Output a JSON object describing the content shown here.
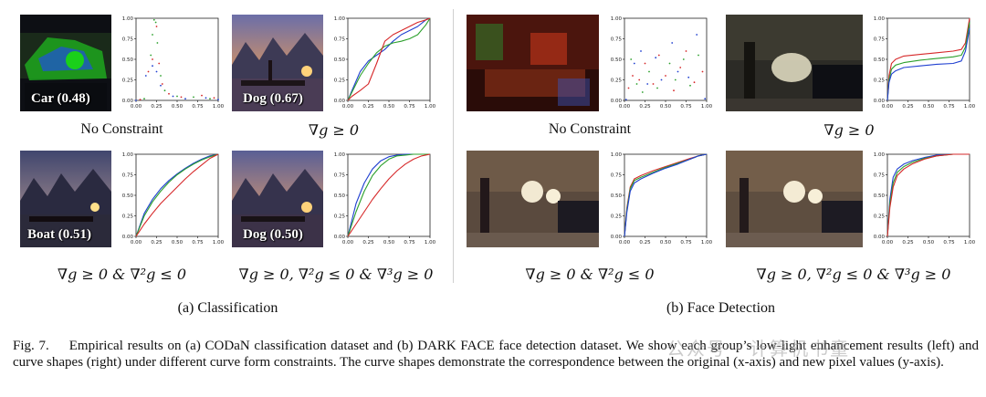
{
  "panels": {
    "classification": {
      "title": "(a) Classification",
      "groups": [
        {
          "badge": "Car (0.48)",
          "constraint": "No Constraint"
        },
        {
          "badge": "Dog (0.67)",
          "constraint": "∇g ≥ 0"
        },
        {
          "badge": "Boat (0.51)",
          "constraint": "∇g ≥ 0  & ∇²g ≤ 0"
        },
        {
          "badge": "Dog (0.50)",
          "constraint": "∇g ≥ 0, ∇²g ≤ 0 & ∇³g ≥ 0"
        }
      ]
    },
    "face_detection": {
      "title": "(b) Face Detection",
      "groups": [
        {
          "constraint": "No Constraint"
        },
        {
          "constraint": "∇g ≥ 0"
        },
        {
          "constraint": "∇g ≥ 0  & ∇²g ≤ 0"
        },
        {
          "constraint": "∇g ≥ 0, ∇²g ≤ 0 & ∇³g ≥ 0"
        }
      ]
    }
  },
  "caption": {
    "label": "Fig. 7.",
    "text": "Empirical results on (a) CODaN classification dataset and (b) DARK FACE face detection dataset. We show each group’s low-light enhancement results (left) and curve shapes (right) under different curve form constraints. The curve shapes demonstrate the correspondence between the original (x-axis) and new pixel values (y-axis)."
  },
  "watermark": "公众号 · 计算机书童",
  "chart_data": [
    {
      "type": "scatter",
      "panel": "classification",
      "constraint": "No Constraint",
      "xlim": [
        0,
        1
      ],
      "ylim": [
        0,
        1
      ],
      "xticks": [
        "0.00",
        "0.25",
        "0.50",
        "0.75",
        "1.00"
      ],
      "yticks": [
        "0.00",
        "0.25",
        "0.50",
        "0.75",
        "1.00"
      ],
      "series": [
        {
          "color": "#2ca02c",
          "points": [
            [
              0.1,
              0.02
            ],
            [
              0.18,
              0.55
            ],
            [
              0.2,
              0.8
            ],
            [
              0.22,
              0.98
            ],
            [
              0.24,
              0.95
            ],
            [
              0.26,
              0.7
            ],
            [
              0.3,
              0.3
            ],
            [
              0.35,
              0.12
            ],
            [
              0.5,
              0.05
            ],
            [
              0.7,
              0.04
            ],
            [
              0.9,
              0.02
            ]
          ]
        },
        {
          "color": "#d62728",
          "points": [
            [
              0.05,
              0.01
            ],
            [
              0.15,
              0.35
            ],
            [
              0.2,
              0.5
            ],
            [
              0.25,
              0.9
            ],
            [
              0.28,
              0.45
            ],
            [
              0.32,
              0.2
            ],
            [
              0.4,
              0.08
            ],
            [
              0.55,
              0.04
            ],
            [
              0.8,
              0.06
            ],
            [
              0.95,
              0.03
            ]
          ]
        },
        {
          "color": "#1f3fd0",
          "points": [
            [
              0.0,
              0.0
            ],
            [
              0.12,
              0.3
            ],
            [
              0.2,
              0.42
            ],
            [
              0.25,
              0.35
            ],
            [
              0.3,
              0.18
            ],
            [
              0.45,
              0.05
            ],
            [
              0.6,
              0.02
            ],
            [
              0.85,
              0.03
            ],
            [
              1.0,
              0.01
            ]
          ]
        }
      ]
    },
    {
      "type": "line",
      "panel": "classification",
      "constraint": "∇g ≥ 0",
      "xlim": [
        0,
        1
      ],
      "ylim": [
        0,
        1
      ],
      "xticks": [
        "0.00",
        "0.25",
        "0.50",
        "0.75",
        "1.00"
      ],
      "yticks": [
        "0.00",
        "0.25",
        "0.50",
        "0.75",
        "1.00"
      ],
      "series": [
        {
          "color": "#1f3fd0",
          "x": [
            0,
            0.05,
            0.15,
            0.25,
            0.35,
            0.45,
            0.55,
            0.65,
            0.75,
            0.85,
            0.95,
            1.0
          ],
          "y": [
            0,
            0.12,
            0.35,
            0.48,
            0.55,
            0.62,
            0.72,
            0.8,
            0.85,
            0.9,
            0.98,
            1.0
          ]
        },
        {
          "color": "#2ca02c",
          "x": [
            0,
            0.05,
            0.15,
            0.25,
            0.35,
            0.45,
            0.55,
            0.65,
            0.75,
            0.85,
            0.95,
            1.0
          ],
          "y": [
            0,
            0.1,
            0.3,
            0.45,
            0.58,
            0.66,
            0.7,
            0.72,
            0.75,
            0.8,
            0.92,
            1.0
          ]
        },
        {
          "color": "#d62728",
          "x": [
            0,
            0.05,
            0.15,
            0.25,
            0.35,
            0.45,
            0.55,
            0.65,
            0.75,
            0.85,
            0.95,
            1.0
          ],
          "y": [
            0,
            0.05,
            0.12,
            0.2,
            0.45,
            0.72,
            0.8,
            0.85,
            0.9,
            0.95,
            0.98,
            1.0
          ]
        }
      ]
    },
    {
      "type": "line",
      "panel": "classification",
      "constraint": "∇g ≥ 0  & ∇²g ≤ 0",
      "xlim": [
        0,
        1
      ],
      "ylim": [
        0,
        1
      ],
      "xticks": [
        "0.00",
        "0.25",
        "0.50",
        "0.75",
        "1.00"
      ],
      "yticks": [
        "0.00",
        "0.25",
        "0.50",
        "0.75",
        "1.00"
      ],
      "series": [
        {
          "color": "#1f3fd0",
          "x": [
            0,
            0.1,
            0.2,
            0.3,
            0.4,
            0.5,
            0.6,
            0.7,
            0.8,
            0.9,
            1.0
          ],
          "y": [
            0,
            0.28,
            0.45,
            0.58,
            0.68,
            0.76,
            0.83,
            0.89,
            0.94,
            0.98,
            1.0
          ]
        },
        {
          "color": "#2ca02c",
          "x": [
            0,
            0.1,
            0.2,
            0.3,
            0.4,
            0.5,
            0.6,
            0.7,
            0.8,
            0.9,
            1.0
          ],
          "y": [
            0,
            0.25,
            0.42,
            0.55,
            0.66,
            0.75,
            0.82,
            0.88,
            0.93,
            0.97,
            1.0
          ]
        },
        {
          "color": "#d62728",
          "x": [
            0,
            0.1,
            0.2,
            0.3,
            0.4,
            0.5,
            0.6,
            0.7,
            0.8,
            0.9,
            1.0
          ],
          "y": [
            0,
            0.15,
            0.28,
            0.4,
            0.5,
            0.6,
            0.7,
            0.79,
            0.87,
            0.95,
            1.0
          ]
        }
      ]
    },
    {
      "type": "line",
      "panel": "classification",
      "constraint": "∇g ≥ 0, ∇²g ≤ 0 & ∇³g ≥ 0",
      "xlim": [
        0,
        1
      ],
      "ylim": [
        0,
        1
      ],
      "xticks": [
        "0.00",
        "0.25",
        "0.50",
        "0.75",
        "1.00"
      ],
      "yticks": [
        "0.00",
        "0.25",
        "0.50",
        "0.75",
        "1.00"
      ],
      "series": [
        {
          "color": "#1f3fd0",
          "x": [
            0,
            0.1,
            0.2,
            0.3,
            0.4,
            0.5,
            0.6,
            0.7,
            0.8,
            0.9,
            1.0
          ],
          "y": [
            0,
            0.4,
            0.65,
            0.82,
            0.92,
            0.97,
            0.99,
            1.0,
            1.0,
            1.0,
            1.0
          ]
        },
        {
          "color": "#2ca02c",
          "x": [
            0,
            0.1,
            0.2,
            0.3,
            0.4,
            0.5,
            0.6,
            0.7,
            0.8,
            0.9,
            1.0
          ],
          "y": [
            0,
            0.3,
            0.55,
            0.74,
            0.86,
            0.94,
            0.98,
            0.99,
            1.0,
            1.0,
            1.0
          ]
        },
        {
          "color": "#d62728",
          "x": [
            0,
            0.1,
            0.2,
            0.3,
            0.4,
            0.5,
            0.6,
            0.7,
            0.8,
            0.9,
            1.0
          ],
          "y": [
            0,
            0.15,
            0.3,
            0.45,
            0.58,
            0.7,
            0.8,
            0.88,
            0.94,
            0.98,
            1.0
          ]
        }
      ]
    },
    {
      "type": "scatter",
      "panel": "face_detection",
      "constraint": "No Constraint",
      "xlim": [
        0,
        1
      ],
      "ylim": [
        0,
        1
      ],
      "xticks": [
        "0.00",
        "0.25",
        "0.50",
        "0.75",
        "1.00"
      ],
      "yticks": [
        "0.00",
        "0.25",
        "0.50",
        "0.75",
        "1.00"
      ],
      "series": [
        {
          "color": "#d62728",
          "points": [
            [
              0.05,
              0.15
            ],
            [
              0.1,
              0.3
            ],
            [
              0.18,
              0.25
            ],
            [
              0.25,
              0.45
            ],
            [
              0.35,
              0.2
            ],
            [
              0.42,
              0.55
            ],
            [
              0.5,
              0.3
            ],
            [
              0.6,
              0.12
            ],
            [
              0.68,
              0.4
            ],
            [
              0.75,
              0.6
            ],
            [
              0.85,
              0.22
            ],
            [
              0.95,
              0.35
            ]
          ]
        },
        {
          "color": "#2ca02c",
          "points": [
            [
              0.08,
              0.5
            ],
            [
              0.15,
              0.2
            ],
            [
              0.22,
              0.1
            ],
            [
              0.3,
              0.35
            ],
            [
              0.4,
              0.15
            ],
            [
              0.55,
              0.45
            ],
            [
              0.62,
              0.25
            ],
            [
              0.72,
              0.5
            ],
            [
              0.8,
              0.18
            ],
            [
              0.9,
              0.55
            ]
          ]
        },
        {
          "color": "#1f3fd0",
          "points": [
            [
              0.02,
              0.01
            ],
            [
              0.12,
              0.45
            ],
            [
              0.2,
              0.6
            ],
            [
              0.28,
              0.2
            ],
            [
              0.38,
              0.52
            ],
            [
              0.45,
              0.25
            ],
            [
              0.58,
              0.7
            ],
            [
              0.65,
              0.35
            ],
            [
              0.78,
              0.28
            ],
            [
              0.88,
              0.8
            ],
            [
              0.98,
              0.02
            ]
          ]
        }
      ]
    },
    {
      "type": "line",
      "panel": "face_detection",
      "constraint": "∇g ≥ 0",
      "xlim": [
        0,
        1
      ],
      "ylim": [
        0,
        1
      ],
      "xticks": [
        "0.00",
        "0.25",
        "0.50",
        "0.75",
        "1.00"
      ],
      "yticks": [
        "0.00",
        "0.25",
        "0.50",
        "0.75",
        "1.00"
      ],
      "series": [
        {
          "color": "#d62728",
          "x": [
            0,
            0.02,
            0.05,
            0.1,
            0.2,
            0.4,
            0.6,
            0.8,
            0.9,
            0.95,
            1.0
          ],
          "y": [
            0,
            0.3,
            0.45,
            0.5,
            0.54,
            0.56,
            0.58,
            0.6,
            0.62,
            0.7,
            1.0
          ]
        },
        {
          "color": "#2ca02c",
          "x": [
            0,
            0.02,
            0.05,
            0.1,
            0.2,
            0.4,
            0.6,
            0.8,
            0.9,
            0.95,
            1.0
          ],
          "y": [
            0,
            0.25,
            0.38,
            0.43,
            0.46,
            0.49,
            0.51,
            0.53,
            0.55,
            0.65,
            0.95
          ]
        },
        {
          "color": "#1f3fd0",
          "x": [
            0,
            0.02,
            0.05,
            0.1,
            0.2,
            0.4,
            0.6,
            0.8,
            0.9,
            0.95,
            1.0
          ],
          "y": [
            0,
            0.22,
            0.32,
            0.36,
            0.4,
            0.42,
            0.44,
            0.45,
            0.48,
            0.6,
            0.88
          ]
        }
      ]
    },
    {
      "type": "line",
      "panel": "face_detection",
      "constraint": "∇g ≥ 0  & ∇²g ≤ 0",
      "xlim": [
        0,
        1
      ],
      "ylim": [
        0,
        1
      ],
      "xticks": [
        "0.00",
        "0.25",
        "0.50",
        "0.75",
        "1.00"
      ],
      "yticks": [
        "0.00",
        "0.25",
        "0.50",
        "0.75",
        "1.00"
      ],
      "series": [
        {
          "color": "#d62728",
          "x": [
            0,
            0.03,
            0.07,
            0.12,
            0.2,
            0.35,
            0.5,
            0.65,
            0.8,
            0.9,
            1.0
          ],
          "y": [
            0,
            0.35,
            0.6,
            0.7,
            0.74,
            0.8,
            0.85,
            0.9,
            0.95,
            0.98,
            1.0
          ]
        },
        {
          "color": "#2ca02c",
          "x": [
            0,
            0.03,
            0.07,
            0.12,
            0.2,
            0.35,
            0.5,
            0.65,
            0.8,
            0.9,
            1.0
          ],
          "y": [
            0,
            0.33,
            0.58,
            0.68,
            0.72,
            0.78,
            0.84,
            0.89,
            0.94,
            0.98,
            1.0
          ]
        },
        {
          "color": "#1f3fd0",
          "x": [
            0,
            0.03,
            0.07,
            0.12,
            0.2,
            0.35,
            0.5,
            0.65,
            0.8,
            0.9,
            1.0
          ],
          "y": [
            0,
            0.3,
            0.55,
            0.65,
            0.7,
            0.77,
            0.83,
            0.88,
            0.94,
            0.98,
            1.0
          ]
        }
      ]
    },
    {
      "type": "line",
      "panel": "face_detection",
      "constraint": "∇g ≥ 0, ∇²g ≤ 0 & ∇³g ≥ 0",
      "xlim": [
        0,
        1
      ],
      "ylim": [
        0,
        1
      ],
      "xticks": [
        "0.00",
        "0.25",
        "0.50",
        "0.75",
        "1.00"
      ],
      "yticks": [
        "0.00",
        "0.25",
        "0.50",
        "0.75",
        "1.00"
      ],
      "series": [
        {
          "color": "#1f3fd0",
          "x": [
            0,
            0.03,
            0.07,
            0.12,
            0.2,
            0.3,
            0.45,
            0.6,
            0.8,
            1.0
          ],
          "y": [
            0,
            0.45,
            0.72,
            0.82,
            0.88,
            0.92,
            0.96,
            0.99,
            1.0,
            1.0
          ]
        },
        {
          "color": "#2ca02c",
          "x": [
            0,
            0.03,
            0.07,
            0.12,
            0.2,
            0.3,
            0.45,
            0.6,
            0.8,
            1.0
          ],
          "y": [
            0,
            0.4,
            0.65,
            0.78,
            0.85,
            0.9,
            0.95,
            0.98,
            1.0,
            1.0
          ]
        },
        {
          "color": "#d62728",
          "x": [
            0,
            0.03,
            0.07,
            0.12,
            0.2,
            0.3,
            0.45,
            0.6,
            0.8,
            1.0
          ],
          "y": [
            0,
            0.35,
            0.6,
            0.74,
            0.82,
            0.88,
            0.94,
            0.98,
            1.0,
            1.0
          ]
        }
      ]
    }
  ]
}
